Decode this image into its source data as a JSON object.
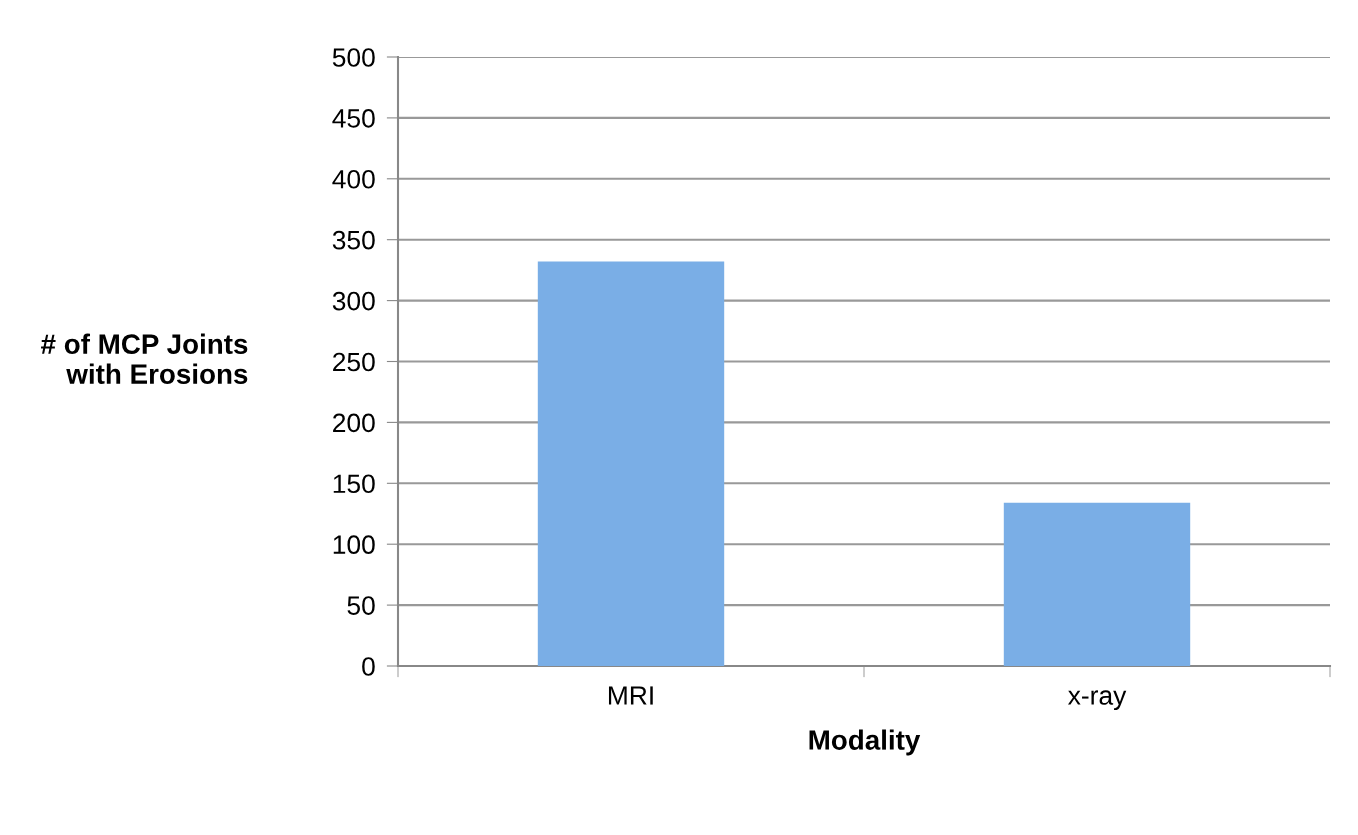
{
  "chart_data": {
    "type": "bar",
    "xlabel": "Modality",
    "ylabel": "# of MCP Joints\nwith Erosions",
    "categories": [
      "MRI",
      "x-ray"
    ],
    "values": [
      332,
      134
    ],
    "color": "#7aaee6",
    "ylim": [
      0,
      500
    ],
    "yticks": [
      0,
      50,
      100,
      150,
      200,
      250,
      300,
      350,
      400,
      450,
      500
    ],
    "grid": "y"
  }
}
